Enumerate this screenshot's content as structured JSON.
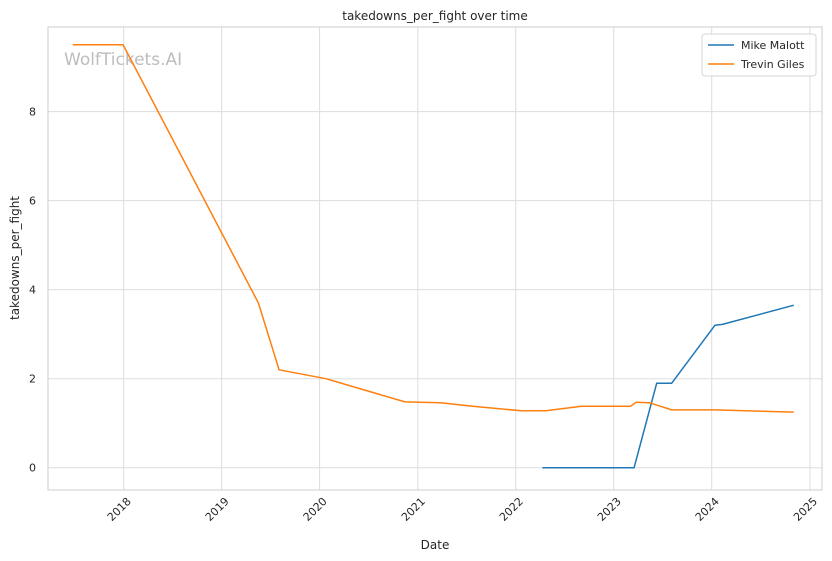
{
  "chart_data": {
    "type": "line",
    "title": "takedowns_per_fight over time",
    "xlabel": "Date",
    "ylabel": "takedowns_per_fight",
    "watermark": "WolfTickets.AI",
    "x_ticks": [
      "2018",
      "2019",
      "2020",
      "2021",
      "2022",
      "2023",
      "2024",
      "2025"
    ],
    "y_ticks": [
      "0",
      "2",
      "4",
      "6",
      "8"
    ],
    "xlim": [
      "2017-03-25",
      "2025-02-15"
    ],
    "ylim": [
      -0.5,
      9.9
    ],
    "grid": true,
    "legend_position": "top-right",
    "series": [
      {
        "name": "Mike Malott",
        "color": "#1f77b4",
        "points": [
          [
            "2022-04-10",
            0.0
          ],
          [
            "2023-03-18",
            0.0
          ],
          [
            "2023-06-10",
            1.9
          ],
          [
            "2023-08-05",
            1.9
          ],
          [
            "2024-01-13",
            3.2
          ],
          [
            "2024-02-10",
            3.22
          ],
          [
            "2024-11-02",
            3.65
          ]
        ]
      },
      {
        "name": "Trevin Giles",
        "color": "#ff7f0e",
        "points": [
          [
            "2017-06-25",
            9.5
          ],
          [
            "2017-12-30",
            9.5
          ],
          [
            "2019-05-18",
            3.7
          ],
          [
            "2019-08-03",
            2.2
          ],
          [
            "2020-01-25",
            2.0
          ],
          [
            "2020-11-14",
            1.48
          ],
          [
            "2021-03-27",
            1.46
          ],
          [
            "2021-07-24",
            1.38
          ],
          [
            "2022-01-22",
            1.28
          ],
          [
            "2022-04-23",
            1.28
          ],
          [
            "2022-09-03",
            1.38
          ],
          [
            "2023-03-04",
            1.38
          ],
          [
            "2023-03-25",
            1.47
          ],
          [
            "2023-05-13",
            1.46
          ],
          [
            "2023-08-05",
            1.3
          ],
          [
            "2024-01-13",
            1.3
          ],
          [
            "2024-11-02",
            1.25
          ]
        ]
      }
    ]
  }
}
